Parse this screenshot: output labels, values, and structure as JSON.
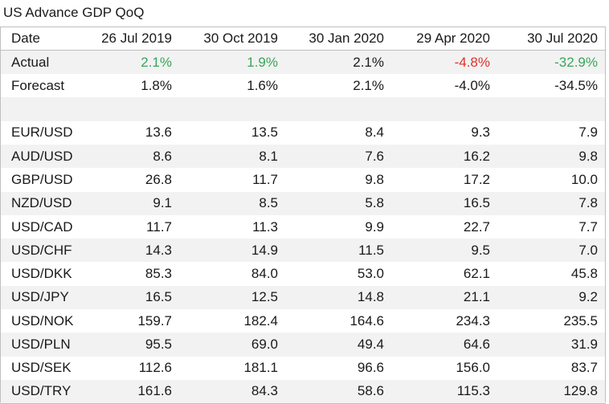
{
  "title": "US Advance GDP QoQ",
  "header": {
    "label": "Date",
    "dates": [
      "26 Jul 2019",
      "30 Oct 2019",
      "30 Jan 2020",
      "29 Apr 2020",
      "30 Jul 2020"
    ]
  },
  "actual": {
    "label": "Actual",
    "values": [
      "2.1%",
      "1.9%",
      "2.1%",
      "-4.8%",
      "-32.9%"
    ],
    "colors": [
      "#3aa55a",
      "#3aa55a",
      "#1a1a1a",
      "#e0302a",
      "#3aa55a"
    ]
  },
  "forecast": {
    "label": "Forecast",
    "values": [
      "1.8%",
      "1.6%",
      "2.1%",
      "-4.0%",
      "-34.5%"
    ]
  },
  "pairs": [
    {
      "label": "EUR/USD",
      "values": [
        "13.6",
        "13.5",
        "8.4",
        "9.3",
        "7.9"
      ]
    },
    {
      "label": "AUD/USD",
      "values": [
        "8.6",
        "8.1",
        "7.6",
        "16.2",
        "9.8"
      ]
    },
    {
      "label": "GBP/USD",
      "values": [
        "26.8",
        "11.7",
        "9.8",
        "17.2",
        "10.0"
      ]
    },
    {
      "label": "NZD/USD",
      "values": [
        "9.1",
        "8.5",
        "5.8",
        "16.5",
        "7.8"
      ]
    },
    {
      "label": "USD/CAD",
      "values": [
        "11.7",
        "11.3",
        "9.9",
        "22.7",
        "7.7"
      ]
    },
    {
      "label": "USD/CHF",
      "values": [
        "14.3",
        "14.9",
        "11.5",
        "9.5",
        "7.0"
      ]
    },
    {
      "label": "USD/DKK",
      "values": [
        "85.3",
        "84.0",
        "53.0",
        "62.1",
        "45.8"
      ]
    },
    {
      "label": "USD/JPY",
      "values": [
        "16.5",
        "12.5",
        "14.8",
        "21.1",
        "9.2"
      ]
    },
    {
      "label": "USD/NOK",
      "values": [
        "159.7",
        "182.4",
        "164.6",
        "234.3",
        "235.5"
      ]
    },
    {
      "label": "USD/PLN",
      "values": [
        "95.5",
        "69.0",
        "49.4",
        "64.6",
        "31.9"
      ]
    },
    {
      "label": "USD/SEK",
      "values": [
        "112.6",
        "181.1",
        "96.6",
        "156.0",
        "83.7"
      ]
    },
    {
      "label": "USD/TRY",
      "values": [
        "161.6",
        "84.3",
        "58.6",
        "115.3",
        "129.8"
      ]
    }
  ]
}
